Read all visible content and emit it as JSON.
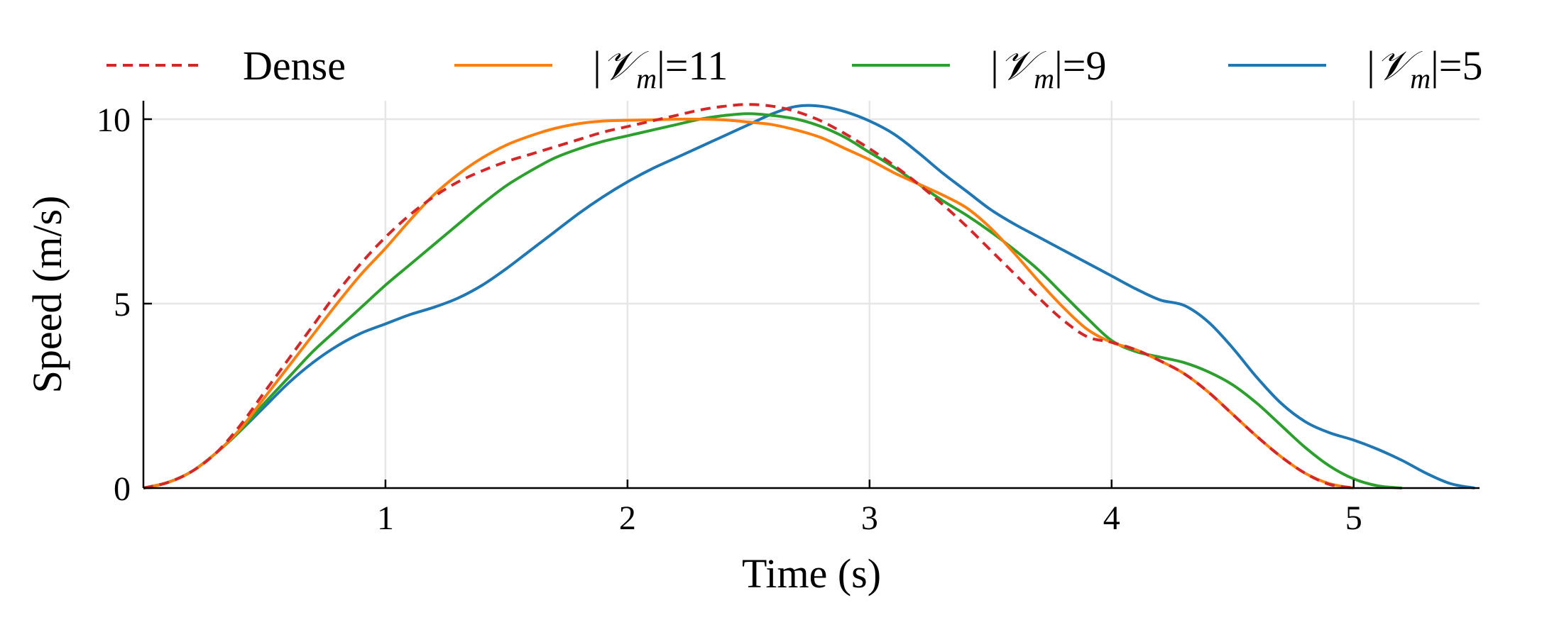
{
  "chart_data": {
    "type": "line",
    "title": "",
    "xlabel": "Time (s)",
    "ylabel": "Speed (m/s)",
    "xlim": [
      0,
      5.52
    ],
    "ylim": [
      0,
      10.5
    ],
    "xticks": [
      1,
      2,
      3,
      4,
      5
    ],
    "xtick_labels": [
      "1",
      "2",
      "3",
      "4",
      "5"
    ],
    "yticks": [
      0,
      5,
      10
    ],
    "ytick_labels": [
      "0",
      "5",
      "10"
    ],
    "grid": true,
    "legend_position": "top",
    "series": [
      {
        "name": "Dense",
        "legend_base": "Dense",
        "legend_subscript": "",
        "legend_value": "",
        "color": "#d62728",
        "style": "dashed",
        "x": [
          0,
          0.1,
          0.2,
          0.3,
          0.4,
          0.5,
          0.6,
          0.7,
          0.8,
          0.9,
          1.0,
          1.1,
          1.2,
          1.3,
          1.4,
          1.5,
          1.6,
          1.7,
          1.8,
          1.9,
          2.0,
          2.1,
          2.2,
          2.3,
          2.4,
          2.5,
          2.6,
          2.7,
          2.8,
          2.9,
          3.0,
          3.1,
          3.2,
          3.3,
          3.4,
          3.5,
          3.6,
          3.7,
          3.8,
          3.9,
          4.0,
          4.1,
          4.2,
          4.3,
          4.4,
          4.5,
          4.6,
          4.7,
          4.8,
          4.9,
          5.0
        ],
        "y": [
          0,
          0.15,
          0.45,
          0.95,
          1.7,
          2.6,
          3.5,
          4.4,
          5.3,
          6.1,
          6.8,
          7.4,
          7.9,
          8.3,
          8.6,
          8.85,
          9.05,
          9.25,
          9.45,
          9.65,
          9.8,
          9.95,
          10.1,
          10.25,
          10.35,
          10.4,
          10.35,
          10.2,
          9.95,
          9.6,
          9.2,
          8.75,
          8.25,
          7.7,
          7.1,
          6.45,
          5.8,
          5.15,
          4.55,
          4.1,
          3.95,
          3.75,
          3.45,
          3.1,
          2.6,
          2.0,
          1.4,
          0.85,
          0.4,
          0.1,
          0
        ]
      },
      {
        "name": "|V_m| = 11",
        "legend_base": "|𝒱",
        "legend_subscript": "m",
        "legend_value": "|=11",
        "color": "#ff7f0e",
        "style": "solid",
        "x": [
          0,
          0.1,
          0.2,
          0.3,
          0.4,
          0.5,
          0.6,
          0.7,
          0.8,
          0.9,
          1.0,
          1.1,
          1.2,
          1.3,
          1.4,
          1.5,
          1.6,
          1.7,
          1.8,
          1.9,
          2.0,
          2.1,
          2.2,
          2.3,
          2.4,
          2.5,
          2.6,
          2.7,
          2.8,
          2.9,
          3.0,
          3.1,
          3.2,
          3.3,
          3.4,
          3.5,
          3.6,
          3.7,
          3.8,
          3.9,
          4.0,
          4.1,
          4.2,
          4.3,
          4.4,
          4.5,
          4.6,
          4.7,
          4.8,
          4.9,
          5.0
        ],
        "y": [
          0,
          0.15,
          0.45,
          0.95,
          1.6,
          2.45,
          3.3,
          4.15,
          5.0,
          5.8,
          6.5,
          7.25,
          7.95,
          8.5,
          8.95,
          9.3,
          9.55,
          9.75,
          9.88,
          9.95,
          9.97,
          9.98,
          10.0,
          10.0,
          9.98,
          9.92,
          9.85,
          9.7,
          9.5,
          9.2,
          8.9,
          8.55,
          8.25,
          7.95,
          7.6,
          7.05,
          6.35,
          5.6,
          4.9,
          4.3,
          3.95,
          3.75,
          3.45,
          3.1,
          2.6,
          2.0,
          1.4,
          0.85,
          0.4,
          0.12,
          0
        ]
      },
      {
        "name": "|V_m| = 9",
        "legend_base": "|𝒱",
        "legend_subscript": "m",
        "legend_value": "|=9",
        "color": "#2ca02c",
        "style": "solid",
        "x": [
          0,
          0.1,
          0.2,
          0.3,
          0.4,
          0.5,
          0.6,
          0.7,
          0.8,
          0.9,
          1.0,
          1.1,
          1.2,
          1.3,
          1.4,
          1.5,
          1.6,
          1.7,
          1.8,
          1.9,
          2.0,
          2.1,
          2.2,
          2.3,
          2.4,
          2.5,
          2.6,
          2.7,
          2.8,
          2.9,
          3.0,
          3.1,
          3.2,
          3.3,
          3.4,
          3.5,
          3.6,
          3.7,
          3.8,
          3.9,
          4.0,
          4.1,
          4.2,
          4.3,
          4.4,
          4.5,
          4.6,
          4.7,
          4.8,
          4.9,
          5.0,
          5.1,
          5.2
        ],
        "y": [
          0,
          0.15,
          0.45,
          0.95,
          1.55,
          2.3,
          3.0,
          3.7,
          4.3,
          4.9,
          5.5,
          6.05,
          6.6,
          7.15,
          7.7,
          8.2,
          8.6,
          8.95,
          9.2,
          9.4,
          9.55,
          9.7,
          9.85,
          10.0,
          10.1,
          10.15,
          10.1,
          10.0,
          9.8,
          9.5,
          9.1,
          8.7,
          8.25,
          7.8,
          7.4,
          6.95,
          6.45,
          5.9,
          5.25,
          4.6,
          4.0,
          3.7,
          3.55,
          3.4,
          3.15,
          2.8,
          2.3,
          1.7,
          1.1,
          0.6,
          0.25,
          0.06,
          0
        ]
      },
      {
        "name": "|V_m| = 5",
        "legend_base": "|𝒱",
        "legend_subscript": "m",
        "legend_value": "|=5",
        "color": "#1f77b4",
        "style": "solid",
        "x": [
          0,
          0.1,
          0.2,
          0.3,
          0.4,
          0.5,
          0.6,
          0.7,
          0.8,
          0.9,
          1.0,
          1.1,
          1.2,
          1.3,
          1.4,
          1.5,
          1.6,
          1.7,
          1.8,
          1.9,
          2.0,
          2.1,
          2.2,
          2.3,
          2.4,
          2.5,
          2.6,
          2.7,
          2.8,
          2.9,
          3.0,
          3.1,
          3.2,
          3.3,
          3.4,
          3.5,
          3.6,
          3.7,
          3.8,
          3.9,
          4.0,
          4.1,
          4.2,
          4.3,
          4.4,
          4.5,
          4.6,
          4.7,
          4.8,
          4.9,
          5.0,
          5.1,
          5.2,
          5.3,
          5.4,
          5.5
        ],
        "y": [
          0,
          0.15,
          0.45,
          0.95,
          1.55,
          2.2,
          2.85,
          3.4,
          3.85,
          4.2,
          4.45,
          4.7,
          4.9,
          5.15,
          5.5,
          5.95,
          6.45,
          6.95,
          7.45,
          7.9,
          8.3,
          8.65,
          8.95,
          9.25,
          9.55,
          9.85,
          10.15,
          10.35,
          10.35,
          10.2,
          9.95,
          9.6,
          9.1,
          8.55,
          8.05,
          7.55,
          7.15,
          6.8,
          6.45,
          6.1,
          5.75,
          5.4,
          5.1,
          4.95,
          4.5,
          3.8,
          3.0,
          2.3,
          1.8,
          1.5,
          1.3,
          1.05,
          0.75,
          0.4,
          0.12,
          0
        ]
      }
    ]
  }
}
